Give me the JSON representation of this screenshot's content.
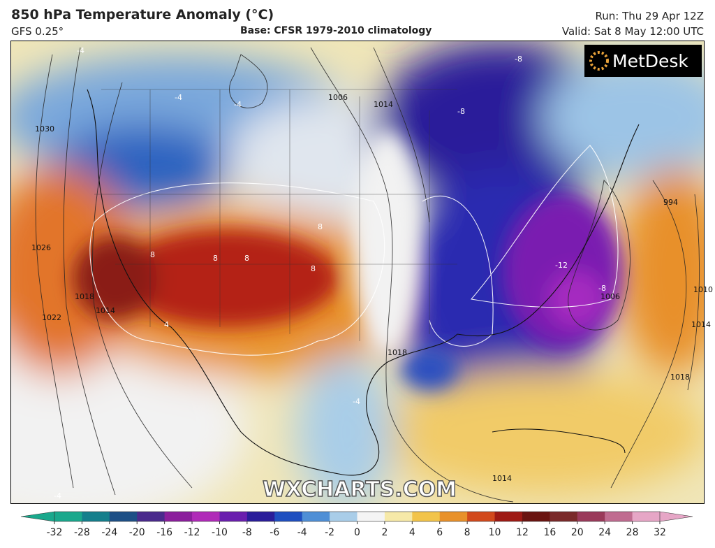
{
  "header": {
    "title": "850 hPa Temperature Anomaly (°C)",
    "model": "GFS 0.25°",
    "base": "Base: CFSR 1979-2010 climatology",
    "run": "Run: Thu 29 Apr 12Z",
    "valid": "Valid: Sat 8 May 12:00 UTC"
  },
  "map": {
    "logo": "MetDesk",
    "watermark": "WXCHARTS.COM",
    "isobar_labels": [
      "1030",
      "1026",
      "1022",
      "1018",
      "1014",
      "1006",
      "1014",
      "1018",
      "1006",
      "994",
      "1010",
      "1014",
      "1018",
      "1014"
    ],
    "anomaly_labels": [
      "-4",
      "-4",
      "-4",
      "-8",
      "-8",
      "-12",
      "-8",
      "8",
      "8",
      "8",
      "8",
      "8",
      "4",
      "-4",
      "-4"
    ]
  },
  "colorbar": {
    "ticks": [
      -32,
      -28,
      -24,
      -20,
      -16,
      -12,
      -10,
      -8,
      -6,
      -4,
      -2,
      0,
      2,
      4,
      6,
      8,
      10,
      12,
      16,
      20,
      24,
      28,
      32
    ],
    "colors": [
      "#1aa88c",
      "#157f8c",
      "#1d4f86",
      "#4a2a8c",
      "#8b1e9c",
      "#b02ab8",
      "#6a1fae",
      "#2a1d9a",
      "#1f4fc0",
      "#4f8fd6",
      "#a9cde8",
      "#f4f4f4",
      "#f6e9a8",
      "#f2c44a",
      "#e8912a",
      "#d2491c",
      "#9e1a14",
      "#6a1410",
      "#7a2a2a",
      "#9a3a5a",
      "#c06c90",
      "#e6a6c6"
    ]
  }
}
